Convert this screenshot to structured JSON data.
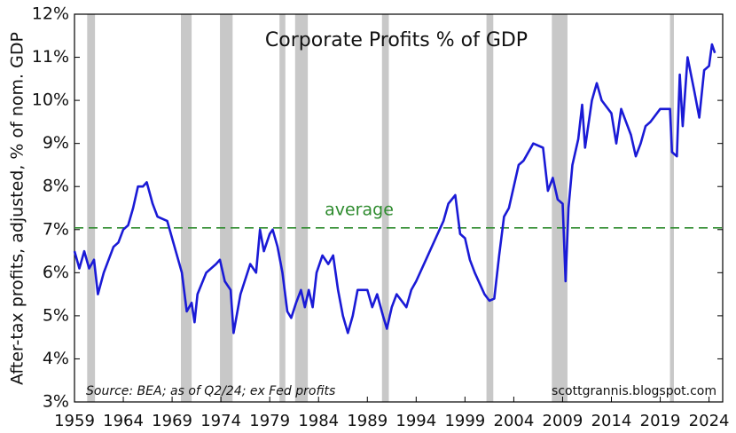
{
  "chart_data": {
    "type": "line",
    "title": "Corporate Profits % of GDP",
    "ylabel": "After-tax profits, adjusted, % of nom. GDP",
    "annotations": {
      "average_label": "average",
      "source": "Source: BEA; as of Q2/24; ex Fed profits",
      "credit": "scottgrannis.blogspot.com"
    },
    "average": 7.04,
    "average_color": "#2e8b2e",
    "recessions": [
      [
        1960.3,
        1961.1
      ],
      [
        1969.9,
        1971.0
      ],
      [
        1973.9,
        1975.2
      ],
      [
        1980.0,
        1980.6
      ],
      [
        1981.6,
        1982.9
      ],
      [
        1990.5,
        1991.2
      ],
      [
        2001.2,
        2001.9
      ],
      [
        2007.9,
        2009.5
      ],
      [
        2020.0,
        2020.4
      ]
    ],
    "recession_color": "#c8c8c8",
    "xlim": [
      1959,
      2025.4
    ],
    "xticks": [
      1959,
      1964,
      1969,
      1974,
      1979,
      1984,
      1989,
      1994,
      1999,
      2004,
      2009,
      2014,
      2019,
      2024
    ],
    "ylim": [
      3,
      12
    ],
    "yticks": [
      {
        "value": 3,
        "label": "3%"
      },
      {
        "value": 4,
        "label": "4%"
      },
      {
        "value": 5,
        "label": "5%"
      },
      {
        "value": 6,
        "label": "6%"
      },
      {
        "value": 7,
        "label": "7%"
      },
      {
        "value": 8,
        "label": "8%"
      },
      {
        "value": 9,
        "label": "9%"
      },
      {
        "value": 10,
        "label": "10%"
      },
      {
        "value": 11,
        "label": "11%"
      },
      {
        "value": 12,
        "label": "12%"
      }
    ],
    "series": [
      {
        "color": "#1a1ad6",
        "x": [
          1959,
          1959.5,
          1960,
          1960.5,
          1961,
          1961.4,
          1962,
          1963,
          1963.5,
          1964,
          1964.5,
          1965,
          1965.5,
          1966,
          1966.4,
          1967,
          1967.5,
          1968.5,
          1969,
          1970,
          1970.5,
          1971,
          1971.3,
          1971.6,
          1972.5,
          1973.5,
          1973.9,
          1974.4,
          1975,
          1975.3,
          1976,
          1977,
          1977.6,
          1978,
          1978.4,
          1979,
          1979.3,
          1979.8,
          1980.3,
          1980.8,
          1981.2,
          1981.7,
          1982.2,
          1982.6,
          1983,
          1983.4,
          1983.8,
          1984.4,
          1985,
          1985.5,
          1986,
          1986.5,
          1987,
          1987.5,
          1988,
          1989,
          1989.5,
          1990,
          1990.6,
          1991,
          1991.5,
          1992,
          1993,
          1993.5,
          1994,
          1995,
          1996,
          1996.8,
          1997.3,
          1998,
          1998.5,
          1999,
          1999.5,
          2000,
          2001,
          2001.5,
          2002,
          2002.5,
          2003,
          2003.5,
          2004,
          2004.5,
          2005,
          2006,
          2007,
          2007.5,
          2008,
          2008.5,
          2009,
          2009.3,
          2009.6,
          2010,
          2010.6,
          2011,
          2011.3,
          2012,
          2012.5,
          2013,
          2014,
          2014.5,
          2015,
          2016,
          2016.5,
          2017,
          2017.5,
          2018,
          2019,
          2020,
          2020.2,
          2020.7,
          2021,
          2021.3,
          2021.8,
          2022.5,
          2023,
          2023.5,
          2024,
          2024.3,
          2024.6
        ],
        "values": [
          6.5,
          6.1,
          6.5,
          6.1,
          6.3,
          5.5,
          6.0,
          6.6,
          6.7,
          7.0,
          7.1,
          7.5,
          8.0,
          8.0,
          8.1,
          7.6,
          7.3,
          7.2,
          6.8,
          6.0,
          5.1,
          5.3,
          4.85,
          5.5,
          6.0,
          6.2,
          6.3,
          5.8,
          5.6,
          4.6,
          5.5,
          6.2,
          6.0,
          7.0,
          6.5,
          6.9,
          7.0,
          6.6,
          6.0,
          5.1,
          4.95,
          5.3,
          5.6,
          5.2,
          5.6,
          5.2,
          6.0,
          6.4,
          6.2,
          6.4,
          5.6,
          5.0,
          4.6,
          5.0,
          5.6,
          5.6,
          5.2,
          5.5,
          5.0,
          4.7,
          5.2,
          5.5,
          5.2,
          5.6,
          5.8,
          6.3,
          6.8,
          7.2,
          7.6,
          7.8,
          6.9,
          6.8,
          6.3,
          6.0,
          5.5,
          5.35,
          5.4,
          6.4,
          7.3,
          7.5,
          8.0,
          8.5,
          8.6,
          9.0,
          8.9,
          7.9,
          8.2,
          7.7,
          7.6,
          5.8,
          7.5,
          8.5,
          9.1,
          9.9,
          8.9,
          10.0,
          10.4,
          10.0,
          9.7,
          9.0,
          9.8,
          9.2,
          8.7,
          9.0,
          9.4,
          9.5,
          9.8,
          9.8,
          8.8,
          8.7,
          10.6,
          9.4,
          11.0,
          10.2,
          9.6,
          10.7,
          10.8,
          11.3,
          11.1
        ]
      }
    ]
  }
}
